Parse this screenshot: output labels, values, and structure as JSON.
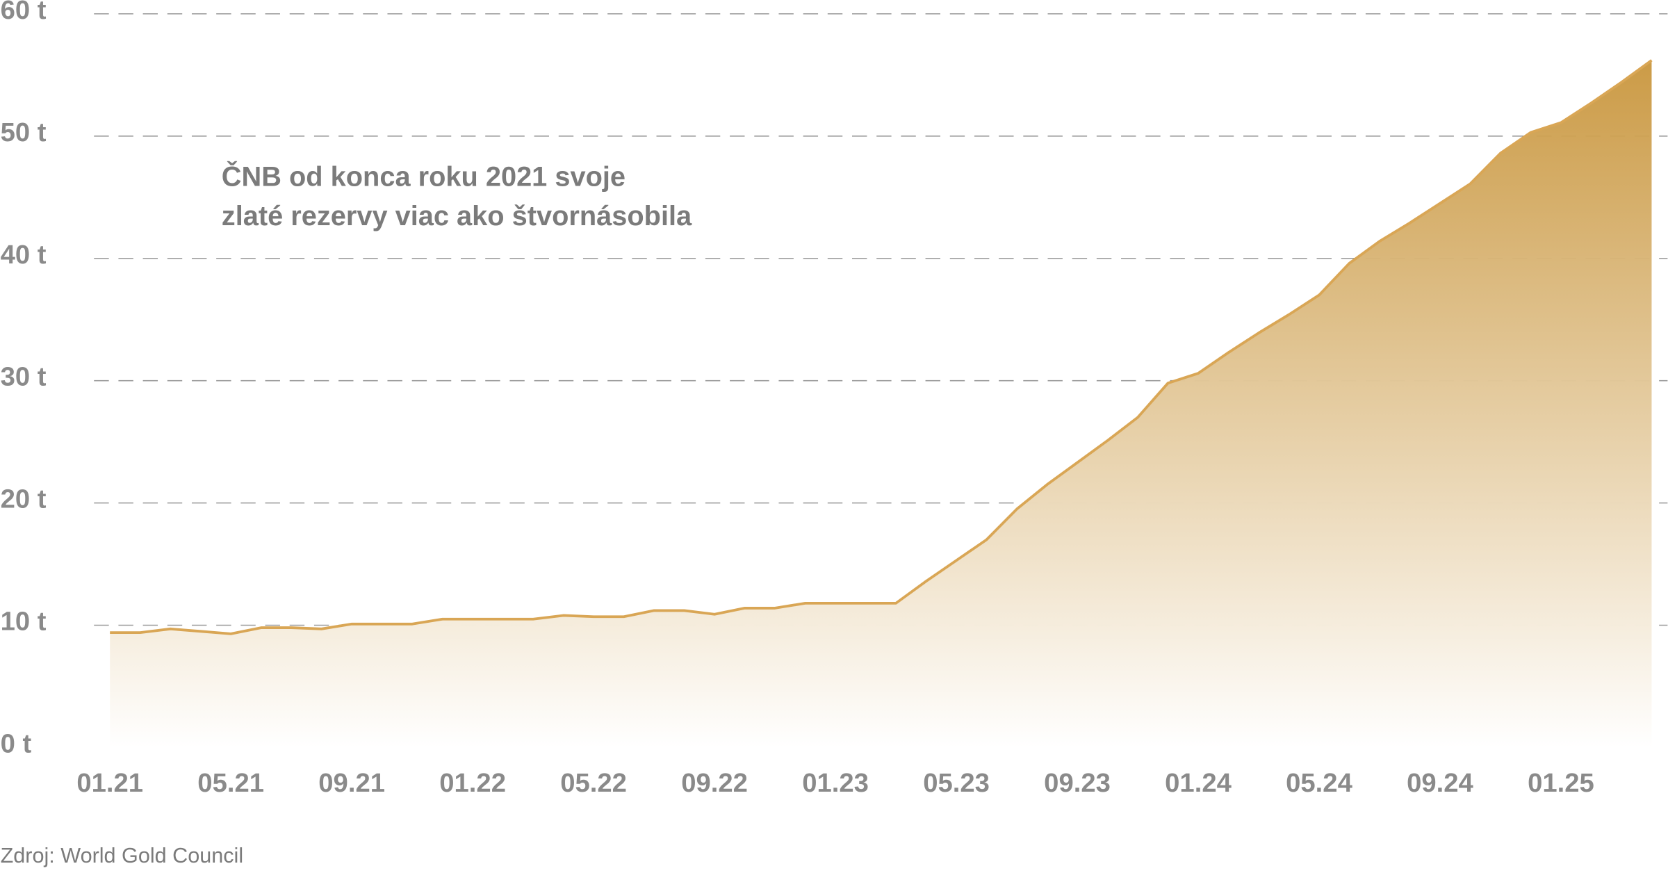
{
  "chart_data": {
    "type": "area",
    "annotation": [
      "ČNB od konca roku 2021 svoje",
      "zlaté rezervy viac ako štvornásobila"
    ],
    "source": "Zdroj: World Gold Council",
    "categories": [
      "01.21",
      null,
      null,
      null,
      "05.21",
      null,
      null,
      null,
      "09.21",
      null,
      null,
      null,
      "01.22",
      null,
      null,
      null,
      "05.22",
      null,
      null,
      null,
      "09.22",
      null,
      null,
      null,
      "01.23",
      null,
      null,
      null,
      "05.23",
      null,
      null,
      null,
      "09.23",
      null,
      null,
      null,
      "01.24",
      null,
      null,
      null,
      "05.24",
      null,
      null,
      null,
      "09.24",
      null,
      null,
      null,
      "01.25",
      null,
      null,
      null
    ],
    "values": [
      9.4,
      9.4,
      9.7,
      9.5,
      9.3,
      9.8,
      9.8,
      9.7,
      10.1,
      10.1,
      10.1,
      10.5,
      10.5,
      10.5,
      10.5,
      10.8,
      10.7,
      10.7,
      11.2,
      11.2,
      10.9,
      11.4,
      11.4,
      11.8,
      11.8,
      11.8,
      11.8,
      13.6,
      15.3,
      17.0,
      19.5,
      21.5,
      23.3,
      25.1,
      27.0,
      29.8,
      30.6,
      32.3,
      33.9,
      35.4,
      37.0,
      39.6,
      41.4,
      42.9,
      44.5,
      46.1,
      48.6,
      50.3,
      51.1,
      52.7,
      54.4,
      56.2
    ],
    "color": "#d9a655",
    "fill_color": "#c9963d",
    "ylim": [
      0,
      60
    ],
    "yticks": [
      {
        "value": 0,
        "label": "0 t"
      },
      {
        "value": 10,
        "label": "10 t"
      },
      {
        "value": 20,
        "label": "20 t"
      },
      {
        "value": 30,
        "label": "30 t"
      },
      {
        "value": 40,
        "label": "40 t"
      },
      {
        "value": 50,
        "label": "50 t"
      },
      {
        "value": 60,
        "label": "60 t"
      }
    ],
    "grid": true
  }
}
